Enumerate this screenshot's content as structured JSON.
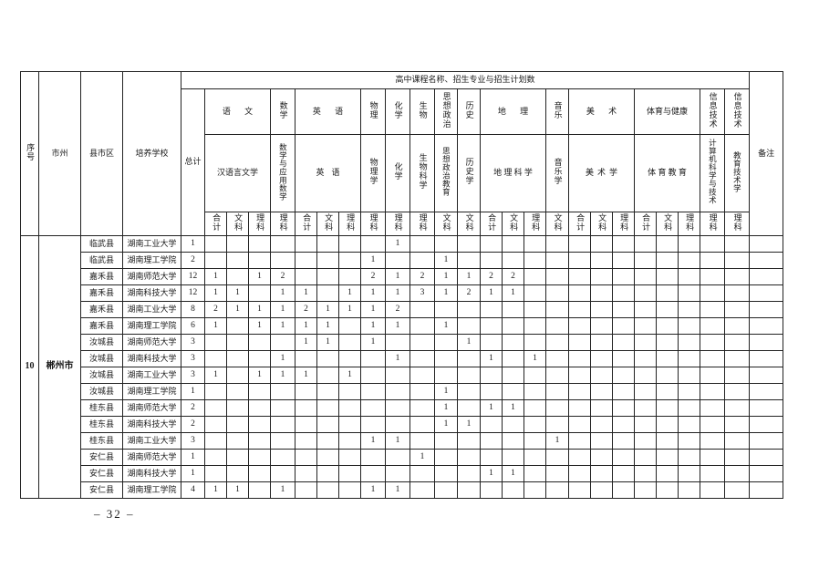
{
  "page": {
    "number_label": "– 32 –"
  },
  "table": {
    "title": "高中课程名称、招生专业与招生计划数",
    "left_headers": {
      "serial": "序号",
      "city": "市州",
      "county": "县市区",
      "school": "培养学校",
      "total": "总计",
      "remark": "备注"
    },
    "groups": [
      {
        "subject": "语文",
        "major": "汉语言文学",
        "cols": [
          "合计",
          "文科",
          "理科"
        ]
      },
      {
        "subject": "数学",
        "major": "数学与应用数学",
        "cols": [
          "理科"
        ]
      },
      {
        "subject": "英语",
        "major": "英语",
        "cols": [
          "合计",
          "文科",
          "理科"
        ]
      },
      {
        "subject": "物理",
        "major": "物理学",
        "cols": [
          "理科"
        ]
      },
      {
        "subject": "化学",
        "major": "化学",
        "cols": [
          "理科"
        ]
      },
      {
        "subject": "生物",
        "major": "生物科学",
        "cols": [
          "理科"
        ]
      },
      {
        "subject": "思想政治",
        "major": "思想政治教育",
        "cols": [
          "文科"
        ]
      },
      {
        "subject": "历史",
        "major": "历史学",
        "cols": [
          "文科"
        ]
      },
      {
        "subject": "地理",
        "major": "地理科学",
        "cols": [
          "合计",
          "文科",
          "理科"
        ]
      },
      {
        "subject": "音乐",
        "major": "音乐学",
        "cols": [
          "文科"
        ]
      },
      {
        "subject": "美术",
        "major": "美术学",
        "cols": [
          "合计",
          "文科",
          "理科"
        ]
      },
      {
        "subject": "体育与健康",
        "major": "体育教育",
        "cols": [
          "合计",
          "文科",
          "理科"
        ]
      },
      {
        "subject": "信息技术",
        "major": "计算机科学与技术",
        "cols": [
          "理科"
        ]
      },
      {
        "subject": "信息技术",
        "major": "教育技术学",
        "cols": [
          "理科"
        ]
      }
    ],
    "serial_value": "10",
    "city_value": "郴州市",
    "rows": [
      {
        "county": "临武县",
        "school": "湖南工业大学",
        "total": "1",
        "values": [
          "",
          "",
          "",
          "",
          "",
          "",
          "",
          "",
          "1",
          "",
          "",
          "",
          "",
          "",
          "",
          "",
          "",
          "",
          "",
          "",
          "",
          "",
          "",
          ""
        ]
      },
      {
        "county": "临武县",
        "school": "湖南理工学院",
        "total": "2",
        "values": [
          "",
          "",
          "",
          "",
          "",
          "",
          "",
          "1",
          "",
          "",
          "1",
          "",
          "",
          "",
          "",
          "",
          "",
          "",
          "",
          "",
          "",
          "",
          "",
          ""
        ]
      },
      {
        "county": "嘉禾县",
        "school": "湖南师范大学",
        "total": "12",
        "values": [
          "1",
          "",
          "1",
          "2",
          "",
          "",
          "",
          "2",
          "1",
          "2",
          "1",
          "1",
          "2",
          "2",
          "",
          "",
          "",
          "",
          "",
          "",
          "",
          "",
          "",
          ""
        ]
      },
      {
        "county": "嘉禾县",
        "school": "湖南科技大学",
        "total": "12",
        "values": [
          "1",
          "1",
          "",
          "1",
          "1",
          "",
          "1",
          "1",
          "1",
          "3",
          "1",
          "2",
          "1",
          "1",
          "",
          "",
          "",
          "",
          "",
          "",
          "",
          "",
          "",
          ""
        ]
      },
      {
        "county": "嘉禾县",
        "school": "湖南工业大学",
        "total": "8",
        "values": [
          "2",
          "1",
          "1",
          "1",
          "2",
          "1",
          "1",
          "1",
          "2",
          "",
          "",
          "",
          "",
          "",
          "",
          "",
          "",
          "",
          "",
          "",
          "",
          "",
          "",
          ""
        ]
      },
      {
        "county": "嘉禾县",
        "school": "湖南理工学院",
        "total": "6",
        "values": [
          "1",
          "",
          "1",
          "1",
          "1",
          "1",
          "",
          "1",
          "1",
          "",
          "1",
          "",
          "",
          "",
          "",
          "",
          "",
          "",
          "",
          "",
          "",
          "",
          "",
          ""
        ]
      },
      {
        "county": "汝城县",
        "school": "湖南师范大学",
        "total": "3",
        "values": [
          "",
          "",
          "",
          "",
          "1",
          "1",
          "",
          "1",
          "",
          "",
          "",
          "1",
          "",
          "",
          "",
          "",
          "",
          "",
          "",
          "",
          "",
          "",
          "",
          ""
        ]
      },
      {
        "county": "汝城县",
        "school": "湖南科技大学",
        "total": "3",
        "values": [
          "",
          "",
          "",
          "1",
          "",
          "",
          "",
          "",
          "1",
          "",
          "",
          "",
          "1",
          "",
          "1",
          "",
          "",
          "",
          "",
          "",
          "",
          "",
          "",
          ""
        ]
      },
      {
        "county": "汝城县",
        "school": "湖南工业大学",
        "total": "3",
        "values": [
          "1",
          "",
          "1",
          "1",
          "1",
          "",
          "1",
          "",
          "",
          "",
          "",
          "",
          "",
          "",
          "",
          "",
          "",
          "",
          "",
          "",
          "",
          "",
          "",
          ""
        ]
      },
      {
        "county": "汝城县",
        "school": "湖南理工学院",
        "total": "1",
        "values": [
          "",
          "",
          "",
          "",
          "",
          "",
          "",
          "",
          "",
          "",
          "1",
          "",
          "",
          "",
          "",
          "",
          "",
          "",
          "",
          "",
          "",
          "",
          "",
          ""
        ]
      },
      {
        "county": "桂东县",
        "school": "湖南师范大学",
        "total": "2",
        "values": [
          "",
          "",
          "",
          "",
          "",
          "",
          "",
          "",
          "",
          "",
          "1",
          "",
          "1",
          "1",
          "",
          "",
          "",
          "",
          "",
          "",
          "",
          "",
          "",
          ""
        ]
      },
      {
        "county": "桂东县",
        "school": "湖南科技大学",
        "total": "2",
        "values": [
          "",
          "",
          "",
          "",
          "",
          "",
          "",
          "",
          "",
          "",
          "1",
          "1",
          "",
          "",
          "",
          "",
          "",
          "",
          "",
          "",
          "",
          "",
          "",
          ""
        ]
      },
      {
        "county": "桂东县",
        "school": "湖南工业大学",
        "total": "3",
        "values": [
          "",
          "",
          "",
          "",
          "",
          "",
          "",
          "1",
          "1",
          "",
          "",
          "",
          "",
          "",
          "",
          "1",
          "",
          "",
          "",
          "",
          "",
          "",
          "",
          ""
        ]
      },
      {
        "county": "安仁县",
        "school": "湖南师范大学",
        "total": "1",
        "values": [
          "",
          "",
          "",
          "",
          "",
          "",
          "",
          "",
          "",
          "1",
          "",
          "",
          "",
          "",
          "",
          "",
          "",
          "",
          "",
          "",
          "",
          "",
          "",
          ""
        ]
      },
      {
        "county": "安仁县",
        "school": "湖南科技大学",
        "total": "1",
        "values": [
          "",
          "",
          "",
          "",
          "",
          "",
          "",
          "",
          "",
          "",
          "",
          "",
          "1",
          "1",
          "",
          "",
          "",
          "",
          "",
          "",
          "",
          "",
          "",
          ""
        ]
      },
      {
        "county": "安仁县",
        "school": "湖南理工学院",
        "total": "4",
        "values": [
          "1",
          "1",
          "",
          "1",
          "",
          "",
          "",
          "1",
          "1",
          "",
          "",
          "",
          "",
          "",
          "",
          "",
          "",
          "",
          "",
          "",
          "",
          "",
          "",
          ""
        ]
      }
    ]
  }
}
